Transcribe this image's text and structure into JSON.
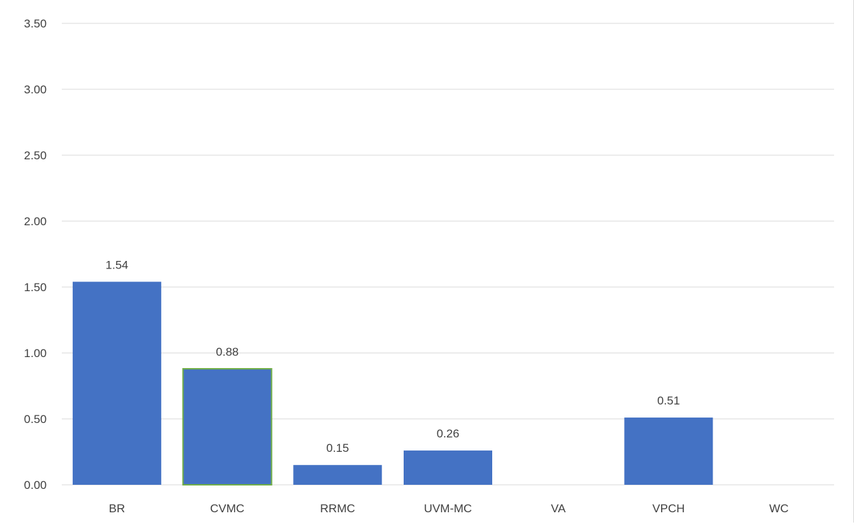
{
  "chart_data": {
    "type": "bar",
    "title": "",
    "xlabel": "",
    "ylabel": "",
    "categories": [
      "BR",
      "CVMC",
      "RRMC",
      "UVM-MC",
      "VA",
      "VPCH",
      "WC"
    ],
    "values": [
      1.54,
      0.88,
      0.15,
      0.26,
      null,
      0.51,
      null
    ],
    "data_labels": [
      "1.54",
      "0.88",
      "0.15",
      "0.26",
      "",
      "0.51",
      ""
    ],
    "ylim": [
      0,
      3.5
    ],
    "yticks": [
      "0.00",
      "0.50",
      "1.00",
      "1.50",
      "2.00",
      "2.50",
      "3.00",
      "3.50"
    ],
    "grid": true,
    "legend": "none",
    "colors": {
      "bar": "#4472c4",
      "highlight_outline": "#70ad47",
      "gridline": "#d9d9d9",
      "text": "#404040"
    },
    "highlighted_category": "CVMC"
  }
}
